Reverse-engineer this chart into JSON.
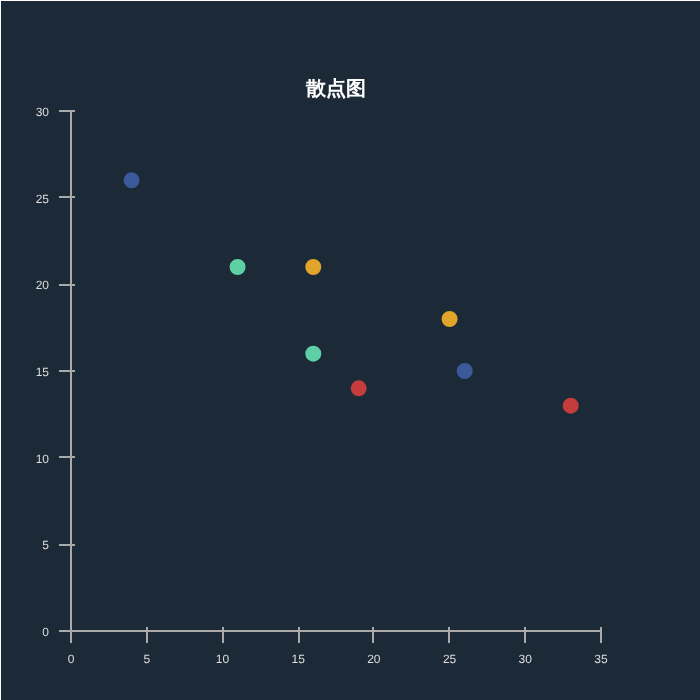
{
  "chart_data": {
    "type": "scatter",
    "title": "散点图",
    "x": [
      4,
      11,
      16,
      16,
      19,
      25,
      26,
      33
    ],
    "values": [
      26,
      21,
      21,
      16,
      14,
      18,
      15,
      13
    ],
    "colors": [
      "#3a5a9a",
      "#5fd0a5",
      "#e0a52a",
      "#5fd0a5",
      "#c43c3c",
      "#e0a52a",
      "#3a5a9a",
      "#c43c3c"
    ],
    "xlim": [
      0,
      35
    ],
    "ylim": [
      0,
      30
    ],
    "xticks": [
      0,
      5,
      10,
      15,
      20,
      25,
      30,
      35
    ],
    "yticks": [
      0,
      5,
      10,
      15,
      20,
      25,
      30
    ],
    "grid": false,
    "marker": "circle"
  }
}
